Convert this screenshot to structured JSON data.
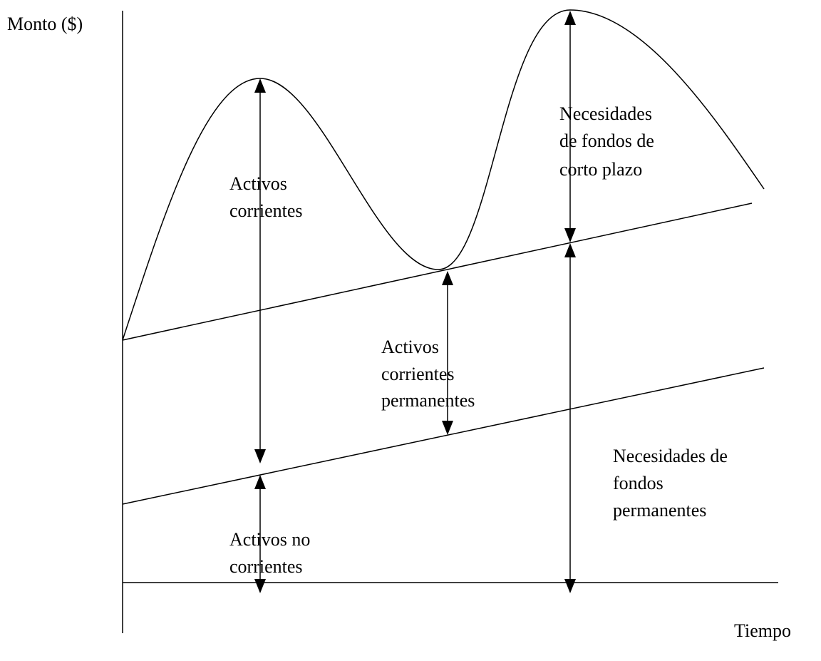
{
  "axes": {
    "y_label": "Monto ($)",
    "x_label": "Tiempo"
  },
  "labels": [
    {
      "lines": [
        "Activos",
        "corrientes"
      ]
    },
    {
      "lines": [
        "Activos",
        "corrientes",
        "permanentes"
      ]
    },
    {
      "lines": [
        "Necesidades",
        "de fondos de",
        "corto plazo"
      ]
    },
    {
      "lines": [
        "Necesidades de",
        "fondos",
        "permanentes"
      ]
    },
    {
      "lines": [
        "Activos no",
        "corrientes"
      ]
    }
  ]
}
